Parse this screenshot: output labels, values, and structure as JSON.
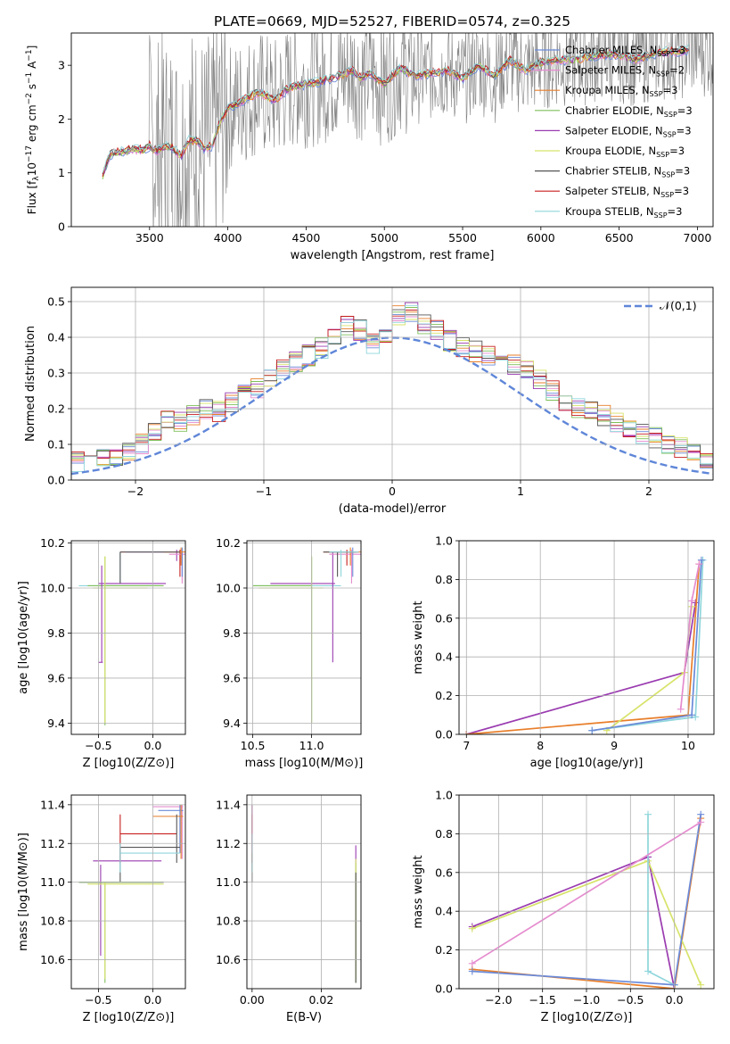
{
  "figure": {
    "title": "PLATE=0669, MJD=52527, FIBERID=0574, z=0.325"
  },
  "legend_labels": [
    "Chabrier MILES, N_SSP=3",
    "Salpeter MILES, N_SSP=2",
    "Kroupa MILES, N_SSP=3",
    "Chabrier ELODIE, N_SSP=3",
    "Salpeter ELODIE, N_SSP=3",
    "Kroupa ELODIE, N_SSP=3",
    "Chabrier STELIB, N_SSP=3",
    "Salpeter STELIB, N_SSP=3",
    "Kroupa STELIB, N_SSP=3"
  ],
  "model_colors": [
    "#6a8ad8",
    "#e58ccf",
    "#e87e2a",
    "#7fbf5a",
    "#9a3bb0",
    "#d7e36a",
    "#555555",
    "#c81e1e",
    "#8fd6dc"
  ],
  "chart_data": [
    {
      "id": "spectrum",
      "type": "line",
      "xlabel": "wavelength [Angstrom, rest frame]",
      "ylabel": "Flux [f_λ 10^-17 erg cm^-2 s^-1 A^-1]",
      "xlim": [
        3000,
        7100
      ],
      "ylim": [
        0,
        3.6
      ],
      "xticks": [
        3500,
        4000,
        4500,
        5000,
        5500,
        6000,
        6500,
        7000
      ],
      "yticks": [
        0,
        1,
        2,
        3
      ],
      "grid": false,
      "legend": "top-right",
      "data_series": {
        "name": "data",
        "color": "#808080",
        "x_range": [
          3200,
          7100
        ],
        "noisy_above": 3500
      },
      "model_points": {
        "x": [
          3200,
          3250,
          3300,
          3350,
          3400,
          3450,
          3500,
          3550,
          3600,
          3650,
          3700,
          3750,
          3800,
          3850,
          3900,
          3950,
          4000,
          4100,
          4200,
          4300,
          4400,
          4500,
          4600,
          4700,
          4800,
          4850,
          4900,
          5000,
          5100,
          5200,
          5300,
          5400,
          5500,
          5600,
          5700,
          5800,
          5900,
          6000,
          6100,
          6200,
          6300,
          6400,
          6500,
          6600,
          6700,
          6800,
          6900,
          6950
        ],
        "y": [
          0.95,
          1.35,
          1.38,
          1.4,
          1.45,
          1.42,
          1.5,
          1.4,
          1.5,
          1.45,
          1.3,
          1.6,
          1.6,
          1.45,
          1.5,
          1.95,
          2.2,
          2.35,
          2.5,
          2.35,
          2.6,
          2.65,
          2.7,
          2.8,
          2.9,
          2.75,
          2.85,
          2.65,
          2.95,
          2.8,
          2.85,
          2.9,
          2.75,
          3.0,
          2.8,
          3.1,
          2.9,
          3.05,
          3.1,
          3.1,
          3.15,
          3.2,
          3.2,
          3.1,
          3.2,
          3.25,
          3.25,
          3.3
        ]
      }
    },
    {
      "id": "residuals",
      "type": "step",
      "xlabel": "(data-model)/error",
      "ylabel": "Normed distribution",
      "xlim": [
        -2.5,
        2.5
      ],
      "ylim": [
        0,
        0.54
      ],
      "xticks": [
        -2,
        -1,
        0,
        1,
        2
      ],
      "yticks": [
        0.0,
        0.1,
        0.2,
        0.3,
        0.4,
        0.5
      ],
      "grid": true,
      "legend": "top-right",
      "reference_curve": {
        "name": "𝒩(0,1)",
        "color": "#5f86d8",
        "mean": 0,
        "sigma": 1
      },
      "bin_width": 0.1,
      "base_hist": [
        0.02,
        0.02,
        0.03,
        0.04,
        0.04,
        0.05,
        0.05,
        0.06,
        0.07,
        0.08,
        0.1,
        0.14,
        0.17,
        0.16,
        0.18,
        0.2,
        0.19,
        0.22,
        0.24,
        0.26,
        0.29,
        0.31,
        0.33,
        0.35,
        0.37,
        0.4,
        0.43,
        0.42,
        0.38,
        0.4,
        0.46,
        0.47,
        0.44,
        0.42,
        0.39,
        0.37,
        0.36,
        0.35,
        0.34,
        0.32,
        0.31,
        0.28,
        0.25,
        0.22,
        0.2,
        0.19,
        0.18,
        0.16,
        0.15,
        0.13,
        0.12,
        0.1,
        0.09,
        0.08,
        0.06,
        0.05,
        0.04,
        0.03,
        0.03,
        0.02
      ]
    },
    {
      "id": "age-vs-Z",
      "type": "errorbar",
      "xlabel": "Z [log10(Z/Z⊙)]",
      "ylabel": "age  [log10(age/yr)]",
      "xlim": [
        -0.75,
        0.3
      ],
      "ylim": [
        9.35,
        10.21
      ],
      "xticks": [
        -0.5,
        0.0
      ],
      "yticks": [
        9.4,
        9.6,
        9.8,
        10.0,
        10.2
      ],
      "grid": true
    },
    {
      "id": "age-vs-mass",
      "type": "errorbar",
      "xlabel": "mass [log10(M/M⊙)]",
      "ylabel": "",
      "xlim": [
        10.45,
        11.42
      ],
      "ylim": [
        9.35,
        10.21
      ],
      "xticks": [
        10.5,
        11.0
      ],
      "yticks": [
        9.4,
        9.6,
        9.8,
        10.0,
        10.2
      ],
      "grid": true
    },
    {
      "id": "massweight-vs-age",
      "type": "line",
      "xlabel": "age  [log10(age/yr)]",
      "ylabel": "mass weight",
      "xlim": [
        6.9,
        10.35
      ],
      "ylim": [
        0,
        1.0
      ],
      "xticks": [
        7,
        8,
        9,
        10
      ],
      "yticks": [
        0.0,
        0.2,
        0.4,
        0.6,
        0.8,
        1.0
      ],
      "grid": true,
      "series": [
        {
          "color": "#9a3bb0",
          "x": [
            7.0,
            9.95,
            10.1
          ],
          "y": [
            0.0,
            0.32,
            0.68
          ]
        },
        {
          "color": "#e87e2a",
          "x": [
            7.0,
            10.0,
            10.15
          ],
          "y": [
            0.0,
            0.1,
            0.88
          ]
        },
        {
          "color": "#d7e36a",
          "x": [
            8.9,
            9.95,
            10.05
          ],
          "y": [
            0.02,
            0.32,
            0.66
          ]
        },
        {
          "color": "#8fd6dc",
          "x": [
            8.7,
            10.1,
            10.2
          ],
          "y": [
            0.02,
            0.09,
            0.9
          ]
        },
        {
          "color": "#6a8ad8",
          "x": [
            8.7,
            10.05,
            10.18
          ],
          "y": [
            0.02,
            0.1,
            0.9
          ]
        },
        {
          "color": "#e58ccf",
          "x": [
            9.9,
            10.05,
            10.15
          ],
          "y": [
            0.13,
            0.69,
            0.88
          ]
        }
      ]
    },
    {
      "id": "mass-vs-Z",
      "type": "errorbar",
      "xlabel": "Z [log10(Z/Z⊙)]",
      "ylabel": "mass [log10(M/M⊙)]",
      "xlim": [
        -0.75,
        0.3
      ],
      "ylim": [
        10.45,
        11.45
      ],
      "xticks": [
        -0.5,
        0.0
      ],
      "yticks": [
        10.6,
        10.8,
        11.0,
        11.2,
        11.4
      ],
      "grid": true
    },
    {
      "id": "mass-vs-EBV",
      "type": "errorbar",
      "xlabel": "E(B-V)",
      "ylabel": "",
      "xlim": [
        -0.0015,
        0.0315
      ],
      "ylim": [
        10.45,
        11.45
      ],
      "xticks": [
        0.0,
        0.02
      ],
      "yticks": [
        10.6,
        10.8,
        11.0,
        11.2,
        11.4
      ],
      "grid": true
    },
    {
      "id": "massweight-vs-Z",
      "type": "line",
      "xlabel": "Z [log10(Z/Z⊙)]",
      "ylabel": "mass weight",
      "xlim": [
        -2.45,
        0.45
      ],
      "ylim": [
        0,
        1.0
      ],
      "xticks": [
        -2.0,
        -1.5,
        -1.0,
        -0.5,
        0.0
      ],
      "yticks": [
        0.0,
        0.2,
        0.4,
        0.6,
        0.8,
        1.0
      ],
      "grid": true,
      "series": [
        {
          "color": "#9a3bb0",
          "x": [
            -2.3,
            -0.3,
            0.0
          ],
          "y": [
            0.32,
            0.68,
            0.0
          ]
        },
        {
          "color": "#e87e2a",
          "x": [
            -2.3,
            0.0,
            0.3
          ],
          "y": [
            0.1,
            0.0,
            0.88
          ]
        },
        {
          "color": "#d7e36a",
          "x": [
            -2.3,
            -0.3,
            0.3
          ],
          "y": [
            0.31,
            0.66,
            0.02
          ]
        },
        {
          "color": "#8fd6dc",
          "x": [
            -0.3,
            -0.3,
            0.0
          ],
          "y": [
            0.9,
            0.09,
            0.02
          ]
        },
        {
          "color": "#6a8ad8",
          "x": [
            -2.3,
            0.0,
            0.3
          ],
          "y": [
            0.09,
            0.02,
            0.9
          ]
        },
        {
          "color": "#e58ccf",
          "x": [
            -2.3,
            0.3
          ],
          "y": [
            0.13,
            0.86
          ]
        }
      ]
    }
  ]
}
